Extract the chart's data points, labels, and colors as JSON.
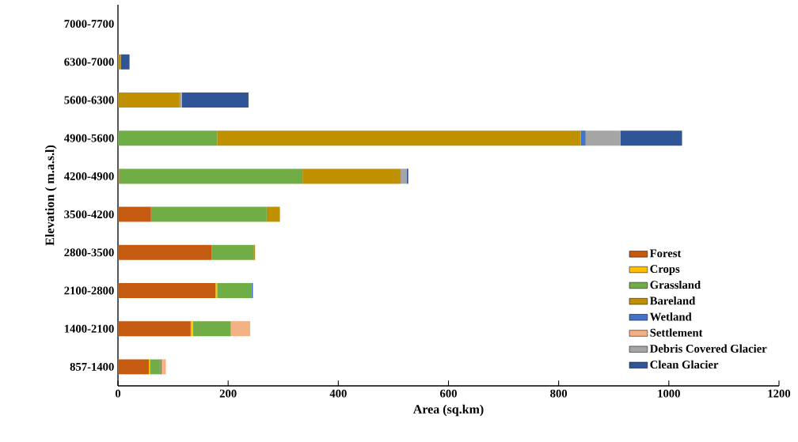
{
  "chart_data": {
    "type": "bar",
    "orientation": "horizontal",
    "stacked": true,
    "xlabel": "Area (sq.km)",
    "ylabel": "Elevation ( m.a.s.l)",
    "categories": [
      "7000-7700",
      "6300-7000",
      "5600-6300",
      "4900-5600",
      "4200-4900",
      "3500-4200",
      "2800-3500",
      "2100-2800",
      "1400-2100",
      "857-1400"
    ],
    "series": [
      {
        "name": "Forest",
        "color": "#c55a11",
        "values": [
          0,
          0,
          0,
          0,
          2,
          60,
          170,
          177,
          132,
          56
        ]
      },
      {
        "name": "Crops",
        "color": "#ffc000",
        "values": [
          0,
          0,
          0,
          0,
          0,
          0,
          0,
          3,
          4,
          2
        ]
      },
      {
        "name": "Grassland",
        "color": "#70ad47",
        "values": [
          0,
          0,
          0,
          180,
          333,
          210,
          76,
          62,
          69,
          19
        ]
      },
      {
        "name": "Bareland",
        "color": "#bf9000",
        "values": [
          0,
          5,
          112,
          660,
          178,
          24,
          3,
          0,
          0,
          0
        ]
      },
      {
        "name": "Wetland",
        "color": "#4472c4",
        "values": [
          0,
          0,
          0,
          9,
          0,
          0,
          0,
          3,
          0,
          2
        ]
      },
      {
        "name": "Settlement",
        "color": "#f4b183",
        "values": [
          0,
          0,
          0,
          0,
          0,
          0,
          0,
          0,
          35,
          8
        ]
      },
      {
        "name": "Debris Covered Glacier",
        "color": "#a5a5a5",
        "values": [
          0,
          0,
          4,
          63,
          11,
          0,
          0,
          0,
          0,
          0
        ]
      },
      {
        "name": "Clean Glacier",
        "color": "#2f5597",
        "values": [
          0,
          16,
          121,
          112,
          3,
          0,
          0,
          0,
          0,
          0
        ]
      }
    ],
    "xlim": [
      0,
      1200
    ],
    "xticks": [
      0,
      200,
      400,
      600,
      800,
      1000,
      1200
    ],
    "legend": "right",
    "grid": false
  }
}
